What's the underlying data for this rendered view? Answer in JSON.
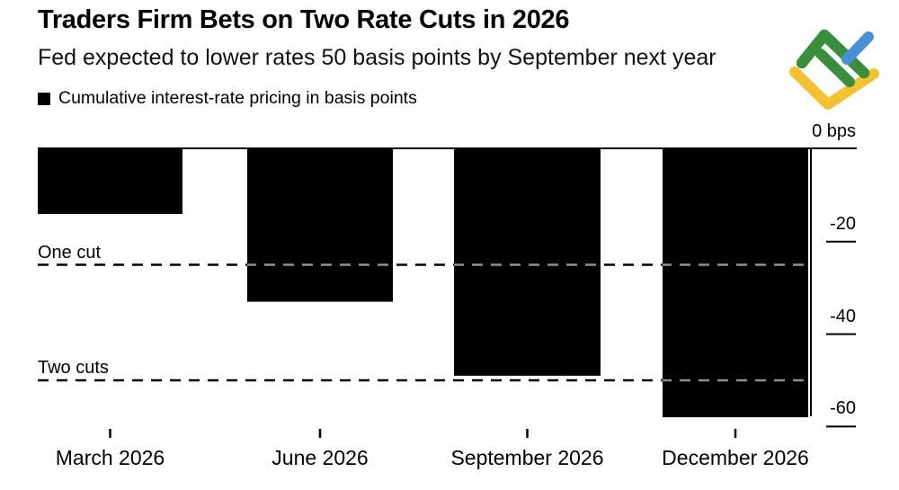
{
  "header": {
    "title": "Traders Firm Bets on Two Rate Cuts in 2026",
    "subtitle": "Fed expected to lower rates 50 basis points by September next year"
  },
  "legend": {
    "label": "Cumulative interest-rate pricing in basis points",
    "swatch_color": "#000000"
  },
  "chart_data": {
    "type": "bar",
    "categories": [
      "March 2026",
      "June 2026",
      "September 2026",
      "December 2026"
    ],
    "values": [
      -14,
      -33,
      -49,
      -58
    ],
    "unit": "basis points",
    "title": "Cumulative interest-rate pricing in basis points",
    "xlabel": "",
    "ylabel": "bps",
    "ylim": [
      -60,
      0
    ],
    "bar_color": "#000000",
    "background_color": "#ffffff",
    "grid": false,
    "legend_position": "top-left",
    "yticks": [
      {
        "label": "0 bps",
        "value": 0
      },
      {
        "label": "-20",
        "value": -20
      },
      {
        "label": "-40",
        "value": -40
      },
      {
        "label": "-60",
        "value": -60
      }
    ],
    "annotations": [
      {
        "label": "One cut",
        "value": -25,
        "style": "dashed"
      },
      {
        "label": "Two cuts",
        "value": -50,
        "style": "dashed"
      }
    ]
  },
  "logo": {
    "name": "litefinance-logo",
    "colors": {
      "green": "#3a8f3f",
      "blue": "#4a90d9",
      "yellow": "#f2c230"
    }
  }
}
